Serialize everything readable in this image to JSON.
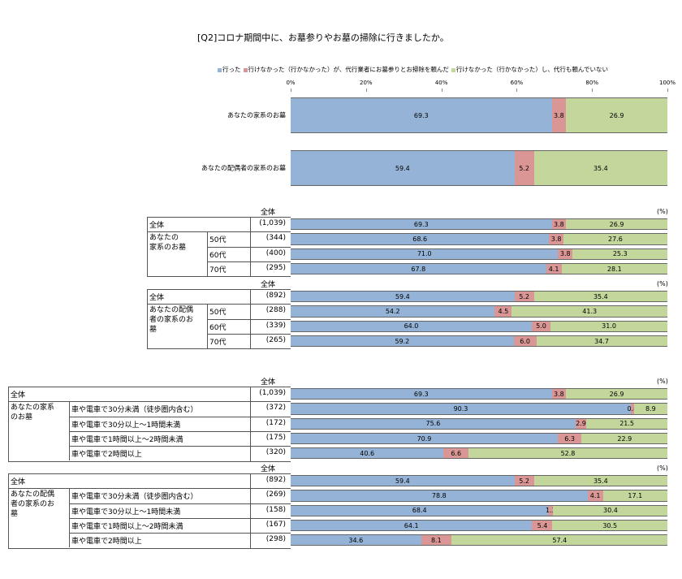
{
  "page_title": "[Q2]コロナ期間中に、お墓参りやお墓の掃除に行きましたか。",
  "legend": [
    {
      "label": "行った",
      "color": "#95b3d7"
    },
    {
      "label": "行けなかった（行かなかった）が、代行業者にお墓参りとお掃除を頼んだ",
      "color": "#d99694"
    },
    {
      "label": "行けなかった（行かなかった）し、代行も頼んでいない",
      "color": "#c3d69b"
    }
  ],
  "axis_ticks": [
    "0%",
    "20%",
    "40%",
    "60%",
    "80%",
    "100%"
  ],
  "chart_data": {
    "type": "bar",
    "stacked": true,
    "orientation": "horizontal",
    "title": "[Q2]コロナ期間中に、お墓参りやお墓の掃除に行きましたか。",
    "xlim": [
      0,
      100
    ],
    "unit": "%",
    "series_names": [
      "行った",
      "行けなかった（行かなかった）が、代行業者にお墓参りとお掃除を頼んだ",
      "行けなかった（行かなかった）し、代行も頼んでいない"
    ],
    "top_chart": [
      {
        "label": "あなたの家系のお墓",
        "values": [
          69.3,
          3.8,
          26.9
        ]
      },
      {
        "label": "あなたの配偶者の家系のお墓",
        "values": [
          59.4,
          5.2,
          35.4
        ]
      }
    ],
    "tables": [
      {
        "header": "全体",
        "unit": "(%)",
        "total_label": "全体",
        "total_n": "(1,039)",
        "total_values": [
          69.3,
          3.8,
          26.9
        ],
        "group_label": "あなたの\n家系のお墓",
        "rows": [
          {
            "label": "50代",
            "n": "(344)",
            "values": [
              68.6,
              3.8,
              27.6
            ]
          },
          {
            "label": "60代",
            "n": "(400)",
            "values": [
              71.0,
              3.8,
              25.3
            ]
          },
          {
            "label": "70代",
            "n": "(295)",
            "values": [
              67.8,
              4.1,
              28.1
            ]
          }
        ]
      },
      {
        "header": "全体",
        "unit": "(%)",
        "total_label": "全体",
        "total_n": "(892)",
        "total_values": [
          59.4,
          5.2,
          35.4
        ],
        "group_label": "あなたの配偶\n者の家系のお\n墓",
        "rows": [
          {
            "label": "50代",
            "n": "(288)",
            "values": [
              54.2,
              4.5,
              41.3
            ]
          },
          {
            "label": "60代",
            "n": "(339)",
            "values": [
              64.0,
              5.0,
              31.0
            ]
          },
          {
            "label": "70代",
            "n": "(265)",
            "values": [
              59.2,
              6.0,
              34.7
            ]
          }
        ]
      },
      {
        "header": "全体",
        "unit": "(%)",
        "total_label": "全体",
        "total_n": "(1,039)",
        "total_values": [
          69.3,
          3.8,
          26.9
        ],
        "group_label": "あなたの家系\nのお墓",
        "rows": [
          {
            "label": "車や電車で30分未満（徒歩圏内含む）",
            "n": "(372)",
            "values": [
              90.3,
              0.8,
              8.9
            ]
          },
          {
            "label": "車や電車で30分以上～1時間未満",
            "n": "(172)",
            "values": [
              75.6,
              2.9,
              21.5
            ]
          },
          {
            "label": "車や電車で1時間以上～2時間未満",
            "n": "(175)",
            "values": [
              70.9,
              6.3,
              22.9
            ]
          },
          {
            "label": "車や電車で2時間以上",
            "n": "(320)",
            "values": [
              40.6,
              6.6,
              52.8
            ]
          }
        ]
      },
      {
        "header": "全体",
        "unit": "(%)",
        "total_label": "全体",
        "total_n": "(892)",
        "total_values": [
          59.4,
          5.2,
          35.4
        ],
        "group_label": "あなたの配偶\n者の家系のお\n墓",
        "rows": [
          {
            "label": "車や電車で30分未満（徒歩圏内含む）",
            "n": "(269)",
            "values": [
              78.8,
              4.1,
              17.1
            ]
          },
          {
            "label": "車や電車で30分以上～1時間未満",
            "n": "(158)",
            "values": [
              68.4,
              1.3,
              30.4
            ]
          },
          {
            "label": "車や電車で1時間以上～2時間未満",
            "n": "(167)",
            "values": [
              64.1,
              5.4,
              30.5
            ]
          },
          {
            "label": "車や電車で2時間以上",
            "n": "(298)",
            "values": [
              34.6,
              8.1,
              57.4
            ]
          }
        ]
      }
    ]
  }
}
